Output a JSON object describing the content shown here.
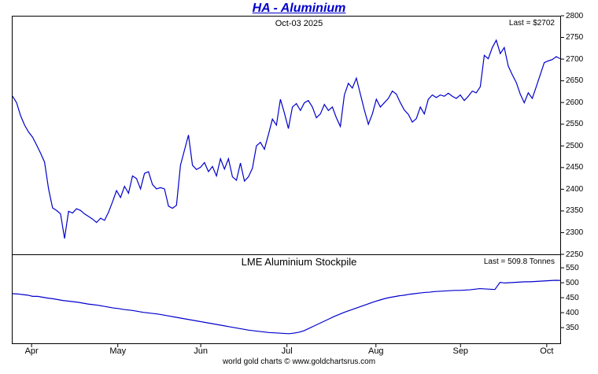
{
  "header": {
    "title": "HA - Aluminium",
    "date": "Oct-03 2025"
  },
  "footer": {
    "credit": "world gold charts © www.goldchartsrus.com"
  },
  "colors": {
    "line": "#0000cc",
    "title": "#0000cc",
    "axis": "#000000",
    "background": "#ffffff"
  },
  "chart_data": [
    {
      "type": "line",
      "title": "HA - Aluminium",
      "subtitle": "Oct-03 2025",
      "last_label": "Last = $2702",
      "last_value": 2702,
      "xlabel": "",
      "ylabel": "",
      "ylim": [
        2250,
        2800
      ],
      "yticks": [
        2800,
        2750,
        2700,
        2650,
        2600,
        2550,
        2500,
        2450,
        2400,
        2350,
        2300,
        2250
      ],
      "grid": false,
      "legend": "none",
      "x_months": [
        "Apr",
        "May",
        "Jun",
        "Jul",
        "Aug",
        "Sep",
        "Oct"
      ],
      "month_fracs": [
        0.036,
        0.193,
        0.344,
        0.501,
        0.663,
        0.817,
        0.974
      ],
      "series": [
        {
          "name": "ha-aluminium-price",
          "color": "#0000cc",
          "values": [
            2615,
            2600,
            2570,
            2548,
            2532,
            2520,
            2502,
            2483,
            2462,
            2400,
            2356,
            2350,
            2342,
            2285,
            2348,
            2344,
            2354,
            2350,
            2342,
            2336,
            2330,
            2322,
            2332,
            2327,
            2346,
            2370,
            2396,
            2380,
            2406,
            2390,
            2430,
            2424,
            2400,
            2436,
            2440,
            2410,
            2400,
            2403,
            2400,
            2360,
            2355,
            2362,
            2455,
            2490,
            2525,
            2455,
            2445,
            2450,
            2461,
            2440,
            2452,
            2430,
            2470,
            2446,
            2470,
            2428,
            2420,
            2460,
            2418,
            2428,
            2448,
            2500,
            2508,
            2492,
            2526,
            2562,
            2548,
            2608,
            2576,
            2540,
            2590,
            2598,
            2582,
            2600,
            2605,
            2590,
            2565,
            2574,
            2596,
            2582,
            2590,
            2565,
            2545,
            2618,
            2645,
            2634,
            2657,
            2620,
            2583,
            2550,
            2574,
            2608,
            2590,
            2600,
            2610,
            2627,
            2620,
            2600,
            2583,
            2573,
            2555,
            2563,
            2590,
            2574,
            2608,
            2618,
            2612,
            2618,
            2615,
            2622,
            2615,
            2610,
            2618,
            2605,
            2615,
            2627,
            2623,
            2637,
            2710,
            2702,
            2728,
            2745,
            2714,
            2728,
            2685,
            2665,
            2647,
            2620,
            2600,
            2623,
            2610,
            2637,
            2665,
            2693,
            2697,
            2700,
            2707,
            2702
          ]
        }
      ]
    },
    {
      "type": "line",
      "title": "LME Aluminium Stockpile",
      "last_label": "Last = 509.8 Tonnes",
      "last_value": 509.8,
      "xlabel": "",
      "ylabel": "",
      "ylim": [
        295,
        595
      ],
      "yticks": [
        550,
        500,
        450,
        400,
        350
      ],
      "grid": false,
      "legend": "none",
      "series": [
        {
          "name": "lme-aluminium-stockpile",
          "color": "#0000cc",
          "values": [
            465,
            464,
            462,
            460,
            456,
            456,
            453,
            450,
            448,
            445,
            442,
            440,
            438,
            436,
            433,
            430,
            428,
            426,
            423,
            420,
            417,
            415,
            412,
            410,
            408,
            405,
            402,
            400,
            398,
            396,
            393,
            390,
            387,
            384,
            381,
            378,
            375,
            372,
            369,
            366,
            363,
            360,
            357,
            354,
            351,
            348,
            345,
            342,
            340,
            338,
            336,
            334,
            333,
            332,
            331,
            330,
            332,
            335,
            340,
            348,
            356,
            364,
            372,
            380,
            388,
            395,
            402,
            408,
            414,
            420,
            426,
            432,
            438,
            443,
            448,
            452,
            455,
            458,
            460,
            463,
            465,
            467,
            469,
            470,
            472,
            473,
            474,
            475,
            476,
            476,
            477,
            478,
            480,
            482,
            481,
            480,
            479,
            503,
            501,
            502,
            503,
            504,
            505,
            505,
            506,
            507,
            508,
            509,
            510,
            509.8
          ]
        }
      ]
    }
  ]
}
